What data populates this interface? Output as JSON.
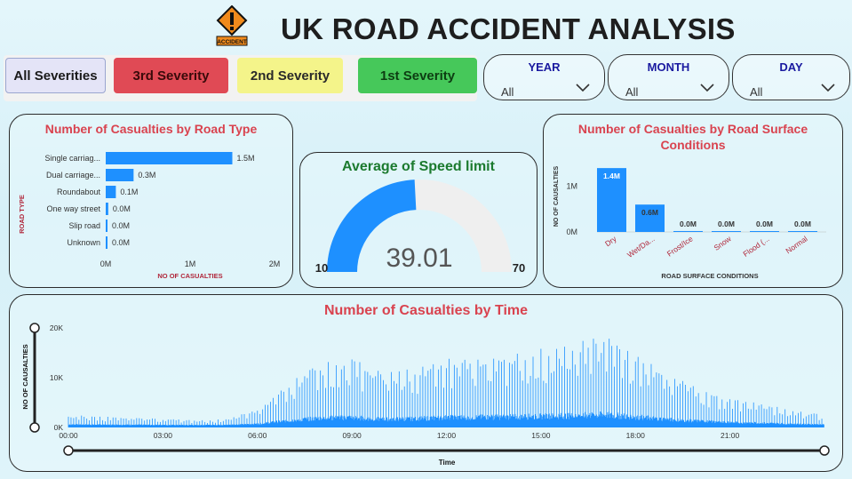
{
  "header": {
    "title": "UK ROAD ACCIDENT ANALYSIS",
    "logo_text": "ACCIDENT"
  },
  "severity_buttons": [
    {
      "label": "All Severities",
      "color": "#e4e4f7",
      "text_color": "#1a1a1a"
    },
    {
      "label": "3rd Severity",
      "color": "#e04a55",
      "text_color": "#3a0a0a"
    },
    {
      "label": "2nd Severity",
      "color": "#f4f48a",
      "text_color": "#2a2a2a"
    },
    {
      "label": "1st Severity",
      "color": "#46c85a",
      "text_color": "#0d3d12"
    }
  ],
  "slicers": [
    {
      "label": "YEAR",
      "value": "All"
    },
    {
      "label": "MONTH",
      "value": "All"
    },
    {
      "label": "DAY",
      "value": "All"
    }
  ],
  "colors": {
    "bar": "#1e90ff",
    "title_red": "#d9434f",
    "gauge_gray": "#efefef",
    "gauge_title_green": "#1b7a2e"
  },
  "chart_data": [
    {
      "type": "bar",
      "orientation": "horizontal",
      "title": "Number of Casualties by Road Type",
      "ylabel": "ROAD TYPE",
      "xlabel": "NO OF CASUALTIES",
      "categories": [
        "Single carriag...",
        "Dual carriage...",
        "Roundabout",
        "One way street",
        "Slip road",
        "Unknown"
      ],
      "values": [
        1500000,
        330000,
        120000,
        30000,
        20000,
        10000
      ],
      "data_labels": [
        "1.5M",
        "0.3M",
        "0.1M",
        "0.0M",
        "0.0M",
        "0.0M"
      ],
      "xticks": [
        "0M",
        "1M",
        "2M"
      ],
      "xlim": [
        0,
        2000000
      ]
    },
    {
      "type": "gauge",
      "title": "Average of Speed limit",
      "value": 39.01,
      "value_label": "39.01",
      "min": 10,
      "max": 70,
      "min_label": "10",
      "max_label": "70"
    },
    {
      "type": "bar",
      "orientation": "vertical",
      "title": "Number of Casualties by Road Surface Conditions",
      "ylabel": "NO OF CAUSALTIES",
      "xlabel": "ROAD SURFACE CONDITIONS",
      "categories": [
        "Dry",
        "Wet/Da...",
        "Frost/Ice",
        "Snow",
        "Flood (...",
        "Normal"
      ],
      "values": [
        1400000,
        600000,
        20000,
        8000,
        3000,
        1000
      ],
      "data_labels": [
        "1.4M",
        "0.6M",
        "0.0M",
        "0.0M",
        "0.0M",
        "0.0M"
      ],
      "yticks": [
        "0M",
        "1M"
      ],
      "ylim": [
        0,
        1500000
      ]
    },
    {
      "type": "bar",
      "title": "Number of Casualties by Time",
      "ylabel": "NO OF CAUSALTIES",
      "xlabel": "Time",
      "xticks": [
        "00:00",
        "03:00",
        "06:00",
        "09:00",
        "12:00",
        "15:00",
        "18:00",
        "21:00"
      ],
      "yticks": [
        "0K",
        "10K",
        "20K"
      ],
      "ylim": [
        0,
        20000
      ],
      "xlim_hours": [
        0,
        24
      ],
      "envelope_hours": [
        0,
        2,
        4,
        5,
        6,
        7,
        8,
        9,
        10,
        11,
        12,
        13,
        14,
        15,
        16,
        17,
        18,
        19,
        20,
        21,
        22,
        23,
        24
      ],
      "envelope_peak": [
        2500,
        2000,
        1500,
        1800,
        3500,
        9000,
        13000,
        14000,
        11000,
        12000,
        14000,
        14500,
        15000,
        16000,
        17000,
        18500,
        15000,
        11000,
        8000,
        6000,
        5000,
        3500,
        2500
      ]
    }
  ]
}
